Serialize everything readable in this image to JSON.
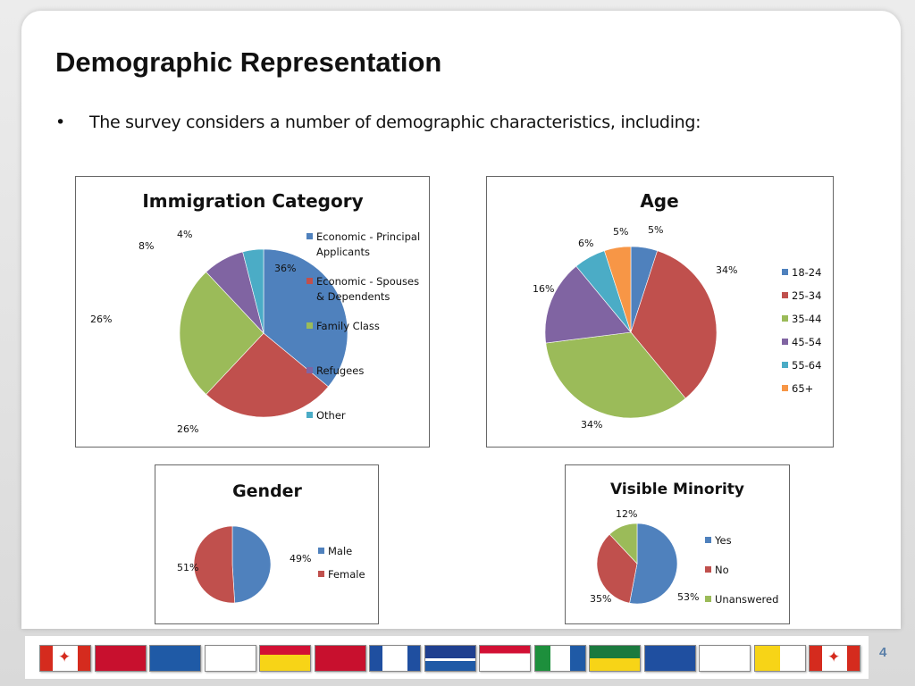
{
  "slide": {
    "title": "Demographic Representation",
    "bullet_marker": "•",
    "bullet": "The survey considers a number of demographic characteristics, including:",
    "page_number": "4"
  },
  "chart_data": [
    {
      "id": "immigration",
      "type": "pie",
      "title": "Immigration Category",
      "categories": [
        "Economic - Principal Applicants",
        "Economic - Spouses & Dependents",
        "Family Class",
        "Refugees",
        "Other"
      ],
      "legend_lines": [
        [
          "Economic - Principal",
          "Applicants"
        ],
        [
          "Economic - Spouses",
          "& Dependents"
        ],
        [
          "Family Class"
        ],
        [
          "Refugees"
        ],
        [
          "Other"
        ]
      ],
      "values": [
        36,
        26,
        26,
        8,
        4
      ],
      "labels": [
        "36%",
        "26%",
        "26%",
        "8%",
        "4%"
      ],
      "colors": [
        "#4f81bd",
        "#c0504d",
        "#9bbb59",
        "#8064a2",
        "#4bacc6"
      ],
      "legend": "right"
    },
    {
      "id": "age",
      "type": "pie",
      "title": "Age",
      "categories": [
        "18-24",
        "25-34",
        "35-44",
        "45-54",
        "55-64",
        "65+"
      ],
      "legend_lines": [
        [
          "18-24"
        ],
        [
          "25-34"
        ],
        [
          "35-44"
        ],
        [
          "45-54"
        ],
        [
          "55-64"
        ],
        [
          "65+"
        ]
      ],
      "values": [
        5,
        34,
        34,
        16,
        6,
        5
      ],
      "labels": [
        "5%",
        "34%",
        "34%",
        "16%",
        "6%",
        "5%"
      ],
      "colors": [
        "#4f81bd",
        "#c0504d",
        "#9bbb59",
        "#8064a2",
        "#4bacc6",
        "#f79646"
      ],
      "legend": "right"
    },
    {
      "id": "gender",
      "type": "pie",
      "title": "Gender",
      "categories": [
        "Male",
        "Female"
      ],
      "legend_lines": [
        [
          "Male"
        ],
        [
          "Female"
        ]
      ],
      "values": [
        49,
        51
      ],
      "labels": [
        "49%",
        "51%"
      ],
      "colors": [
        "#4f81bd",
        "#c0504d"
      ],
      "legend": "right"
    },
    {
      "id": "minority",
      "type": "pie",
      "title": "Visible Minority",
      "categories": [
        "Yes",
        "No",
        "Unanswered"
      ],
      "legend_lines": [
        [
          "Yes"
        ],
        [
          "No"
        ],
        [
          "Unanswered"
        ]
      ],
      "values": [
        53,
        35,
        12
      ],
      "labels": [
        "53%",
        "35%",
        "12%"
      ],
      "colors": [
        "#4f81bd",
        "#c0504d",
        "#9bbb59"
      ],
      "legend": "right"
    }
  ],
  "flags": [
    "canada-flag-icon",
    "ontario-flag-icon",
    "quebec-flag-icon",
    "nova-scotia-flag-icon",
    "new-brunswick-flag-icon",
    "manitoba-flag-icon",
    "northwest-territories-flag-icon",
    "british-columbia-flag-icon",
    "prince-edward-island-flag-icon",
    "yukon-flag-icon",
    "saskatchewan-flag-icon",
    "alberta-flag-icon",
    "newfoundland-flag-icon",
    "nunavut-flag-icon",
    "canada-flag-icon"
  ]
}
